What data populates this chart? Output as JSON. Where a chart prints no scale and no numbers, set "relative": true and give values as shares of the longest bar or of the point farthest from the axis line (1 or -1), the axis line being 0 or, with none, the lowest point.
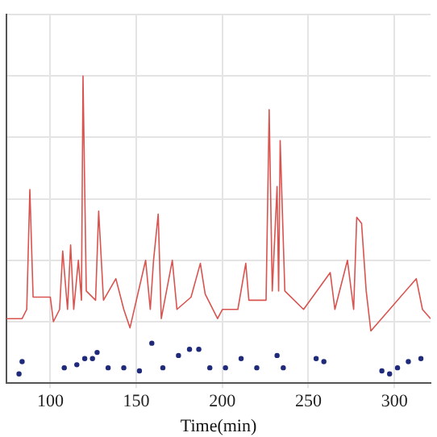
{
  "chart_data": {
    "type": "line",
    "xlabel": "Time(min)",
    "relative": true,
    "xlim": [
      74.5,
      321
    ],
    "xticks": [
      100,
      150,
      200,
      250,
      300
    ],
    "grid": true,
    "series": [
      {
        "color": "#d9534f",
        "x": [
          74.5,
          83.6,
          86.3,
          88.1,
          90,
          100,
          101.8,
          105.4,
          107.2,
          110,
          111.8,
          113.6,
          116.3,
          118.1,
          119,
          120.9,
          126.3,
          128.1,
          130.9,
          138.1,
          142.7,
          146.3,
          155.4,
          158.1,
          160,
          162.7,
          164.5,
          170.9,
          173.6,
          181.8,
          187.2,
          190,
          197.2,
          200,
          209,
          213.6,
          215.4,
          225.4,
          227.2,
          229,
          231.8,
          232.7,
          233.6,
          236.3,
          247.2,
          262.7,
          265.4,
          272.7,
          276.3,
          278.1,
          280.9,
          283.6,
          286.3,
          297.2,
          312.7,
          316.3,
          321
        ],
        "values": [
          0.21,
          0.21,
          0.24,
          0.63,
          0.28,
          0.28,
          0.2,
          0.24,
          0.43,
          0.24,
          0.45,
          0.24,
          0.4,
          0.27,
          1.0,
          0.3,
          0.27,
          0.56,
          0.27,
          0.34,
          0.24,
          0.18,
          0.4,
          0.24,
          0.4,
          0.55,
          0.21,
          0.4,
          0.24,
          0.28,
          0.39,
          0.29,
          0.21,
          0.24,
          0.24,
          0.39,
          0.27,
          0.27,
          0.89,
          0.3,
          0.64,
          0.3,
          0.79,
          0.3,
          0.24,
          0.36,
          0.24,
          0.4,
          0.24,
          0.54,
          0.52,
          0.3,
          0.17,
          0.24,
          0.34,
          0.24,
          0.21
        ]
      },
      {
        "type": "scatter",
        "color": "#1f2a7a",
        "x": [
          81.8,
          83.6,
          108.1,
          115.4,
          120,
          124.5,
          127.2,
          133.6,
          142.7,
          151.8,
          159,
          165.4,
          174.5,
          180.9,
          186.3,
          192.7,
          201.8,
          210.9,
          220,
          231.8,
          235.4,
          254.5,
          259,
          292.7,
          297.2,
          301.8,
          308.1,
          315.4
        ],
        "values": [
          0.03,
          0.07,
          0.05,
          0.06,
          0.08,
          0.08,
          0.1,
          0.05,
          0.05,
          0.04,
          0.13,
          0.05,
          0.09,
          0.11,
          0.11,
          0.05,
          0.05,
          0.08,
          0.05,
          0.09,
          0.05,
          0.08,
          0.07,
          0.04,
          0.03,
          0.05,
          0.07,
          0.08
        ]
      }
    ]
  }
}
